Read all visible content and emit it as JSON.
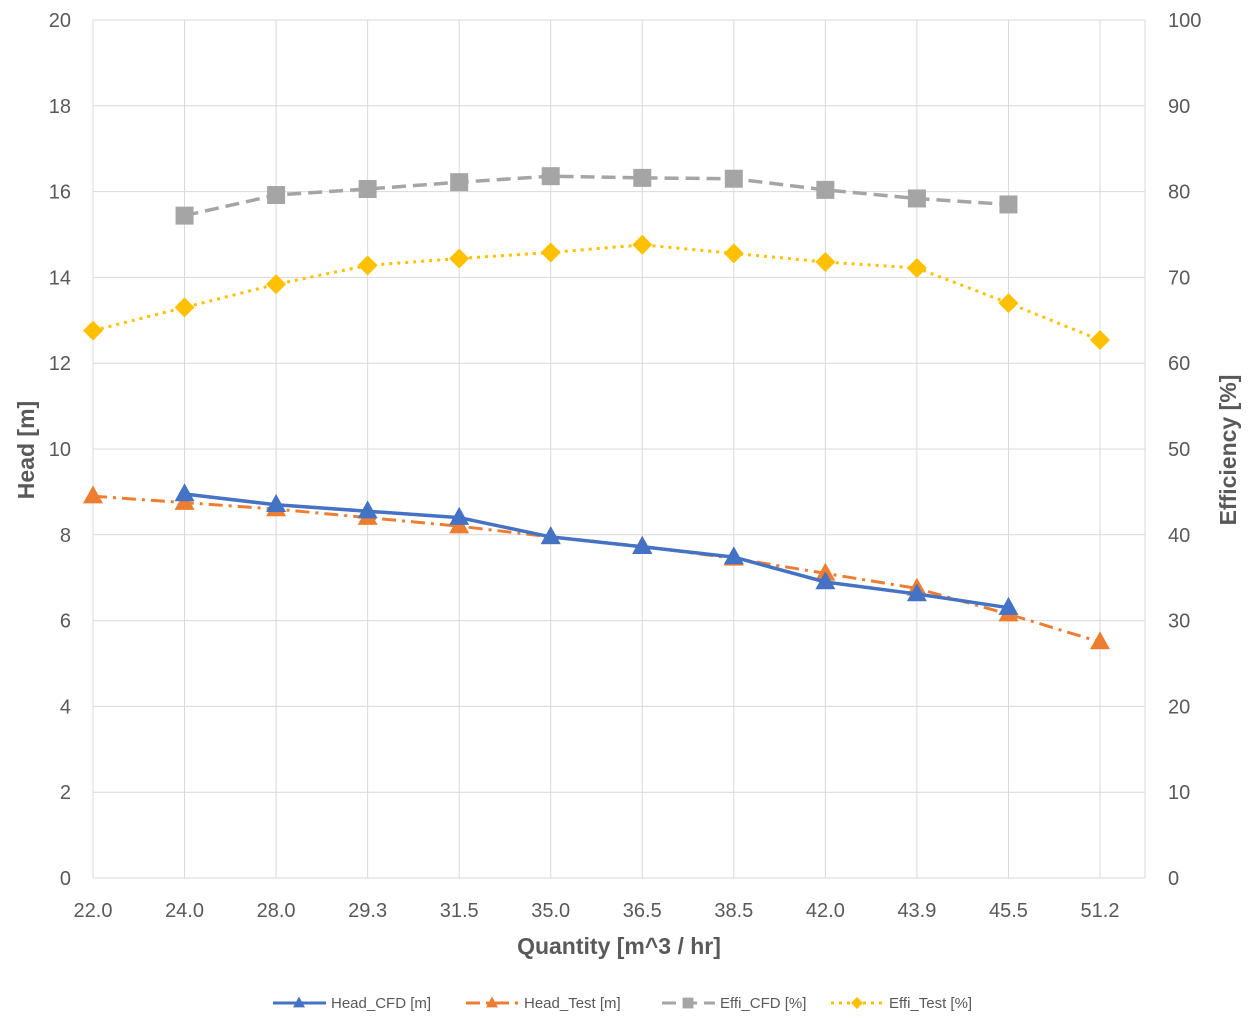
{
  "chart_data": {
    "type": "line",
    "categories": [
      "22.0",
      "24.0",
      "28.0",
      "29.3",
      "31.5",
      "35.0",
      "36.5",
      "38.5",
      "42.0",
      "43.9",
      "45.5",
      "51.2"
    ],
    "xlabel": "Quantity [m^3 / hr]",
    "ylabel_left": "Head [m]",
    "ylabel_right": "Efficiency [%]",
    "ylim_left": [
      0,
      20
    ],
    "ylim_right": [
      0,
      100
    ],
    "yticks_left": [
      "0",
      "2",
      "4",
      "6",
      "8",
      "10",
      "12",
      "14",
      "16",
      "18",
      "20"
    ],
    "yticks_right": [
      "0",
      "10",
      "20",
      "30",
      "40",
      "50",
      "60",
      "70",
      "80",
      "90",
      "100"
    ],
    "grid": true,
    "legend_position": "bottom",
    "series": [
      {
        "name": "Head_CFD [m]",
        "axis": "left",
        "color": "#4472C4",
        "line_style": "solid",
        "marker": "triangle",
        "values": [
          null,
          8.95,
          8.7,
          8.55,
          8.4,
          7.95,
          7.72,
          7.48,
          6.9,
          6.62,
          6.3,
          null
        ]
      },
      {
        "name": "Head_Test [m]",
        "axis": "left",
        "color": "#ED7D31",
        "line_style": "dash-dot",
        "marker": "triangle",
        "values": [
          8.9,
          8.75,
          8.6,
          8.4,
          8.2,
          7.95,
          7.73,
          7.45,
          7.1,
          6.75,
          6.15,
          5.5
        ]
      },
      {
        "name": "Effi_CFD [%]",
        "axis": "right",
        "color": "#A5A5A5",
        "line_style": "dashed",
        "marker": "square",
        "values": [
          null,
          77.2,
          79.6,
          80.3,
          81.1,
          81.8,
          81.6,
          81.5,
          80.2,
          79.2,
          78.5,
          null
        ]
      },
      {
        "name": "Effi_Test [%]",
        "axis": "right",
        "color": "#FFC000",
        "line_style": "dotted",
        "marker": "diamond",
        "values": [
          63.8,
          66.5,
          69.2,
          71.4,
          72.2,
          72.9,
          73.8,
          72.8,
          71.8,
          71.1,
          67.0,
          62.7
        ]
      }
    ]
  }
}
